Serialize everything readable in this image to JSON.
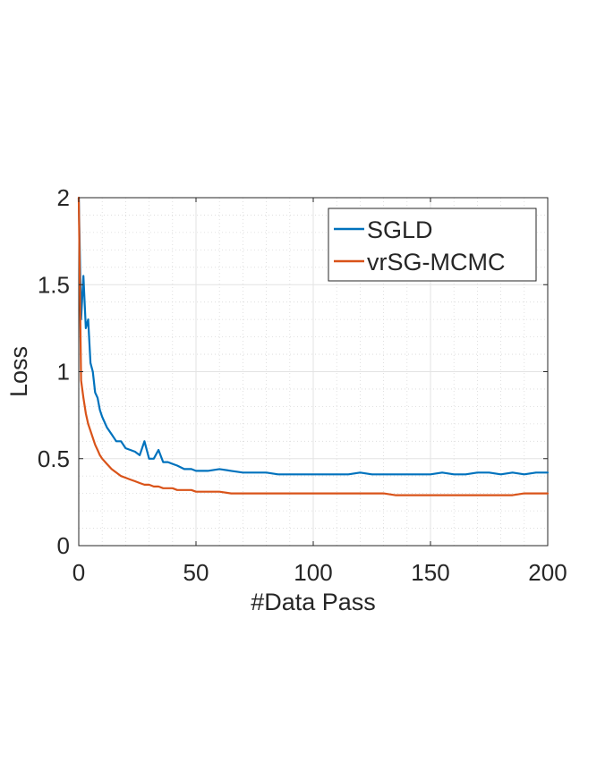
{
  "chart_data": {
    "type": "line",
    "title": "",
    "xlabel": "#Data Pass",
    "ylabel": "Loss",
    "xlim": [
      0,
      200
    ],
    "ylim": [
      0,
      2
    ],
    "xticks": [
      0,
      50,
      100,
      150,
      200
    ],
    "xtick_labels": [
      "0",
      "50",
      "100",
      "150",
      "200"
    ],
    "yticks": [
      0,
      0.5,
      1,
      1.5,
      2
    ],
    "ytick_labels": [
      "0",
      "0.5",
      "1",
      "1.5",
      "2"
    ],
    "grid": "major and minor, dotted",
    "legend_position": "top-right",
    "series": [
      {
        "name": "SGLD",
        "color": "#0072BD",
        "x": [
          0,
          1,
          2,
          3,
          4,
          5,
          6,
          7,
          8,
          9,
          10,
          12,
          14,
          16,
          18,
          20,
          22,
          24,
          26,
          28,
          30,
          32,
          34,
          36,
          38,
          40,
          42,
          45,
          48,
          50,
          55,
          60,
          65,
          70,
          75,
          80,
          85,
          90,
          95,
          100,
          105,
          110,
          115,
          120,
          125,
          130,
          135,
          140,
          145,
          150,
          155,
          160,
          165,
          170,
          175,
          180,
          185,
          190,
          195,
          200
        ],
        "y": [
          2.0,
          1.3,
          1.55,
          1.25,
          1.3,
          1.05,
          1.0,
          0.88,
          0.85,
          0.78,
          0.74,
          0.68,
          0.64,
          0.6,
          0.6,
          0.56,
          0.55,
          0.54,
          0.52,
          0.6,
          0.5,
          0.5,
          0.55,
          0.48,
          0.48,
          0.47,
          0.46,
          0.44,
          0.44,
          0.43,
          0.43,
          0.44,
          0.43,
          0.42,
          0.42,
          0.42,
          0.41,
          0.41,
          0.41,
          0.41,
          0.41,
          0.41,
          0.41,
          0.42,
          0.41,
          0.41,
          0.41,
          0.41,
          0.41,
          0.41,
          0.42,
          0.41,
          0.41,
          0.42,
          0.42,
          0.41,
          0.42,
          0.41,
          0.42,
          0.42
        ]
      },
      {
        "name": "vrSG-MCMC",
        "color": "#D95319",
        "x": [
          0,
          1,
          2,
          3,
          4,
          5,
          6,
          7,
          8,
          9,
          10,
          12,
          14,
          16,
          18,
          20,
          22,
          24,
          26,
          28,
          30,
          32,
          34,
          36,
          38,
          40,
          42,
          45,
          48,
          50,
          55,
          60,
          65,
          70,
          75,
          80,
          85,
          90,
          95,
          100,
          105,
          110,
          115,
          120,
          125,
          130,
          135,
          140,
          145,
          150,
          155,
          160,
          165,
          170,
          175,
          180,
          185,
          190,
          195,
          200
        ],
        "y": [
          2.0,
          0.95,
          0.85,
          0.76,
          0.7,
          0.66,
          0.62,
          0.58,
          0.55,
          0.52,
          0.5,
          0.47,
          0.44,
          0.42,
          0.4,
          0.39,
          0.38,
          0.37,
          0.36,
          0.35,
          0.35,
          0.34,
          0.34,
          0.33,
          0.33,
          0.33,
          0.32,
          0.32,
          0.32,
          0.31,
          0.31,
          0.31,
          0.3,
          0.3,
          0.3,
          0.3,
          0.3,
          0.3,
          0.3,
          0.3,
          0.3,
          0.3,
          0.3,
          0.3,
          0.3,
          0.3,
          0.29,
          0.29,
          0.29,
          0.29,
          0.29,
          0.29,
          0.29,
          0.29,
          0.29,
          0.29,
          0.29,
          0.3,
          0.3,
          0.3
        ]
      }
    ]
  }
}
